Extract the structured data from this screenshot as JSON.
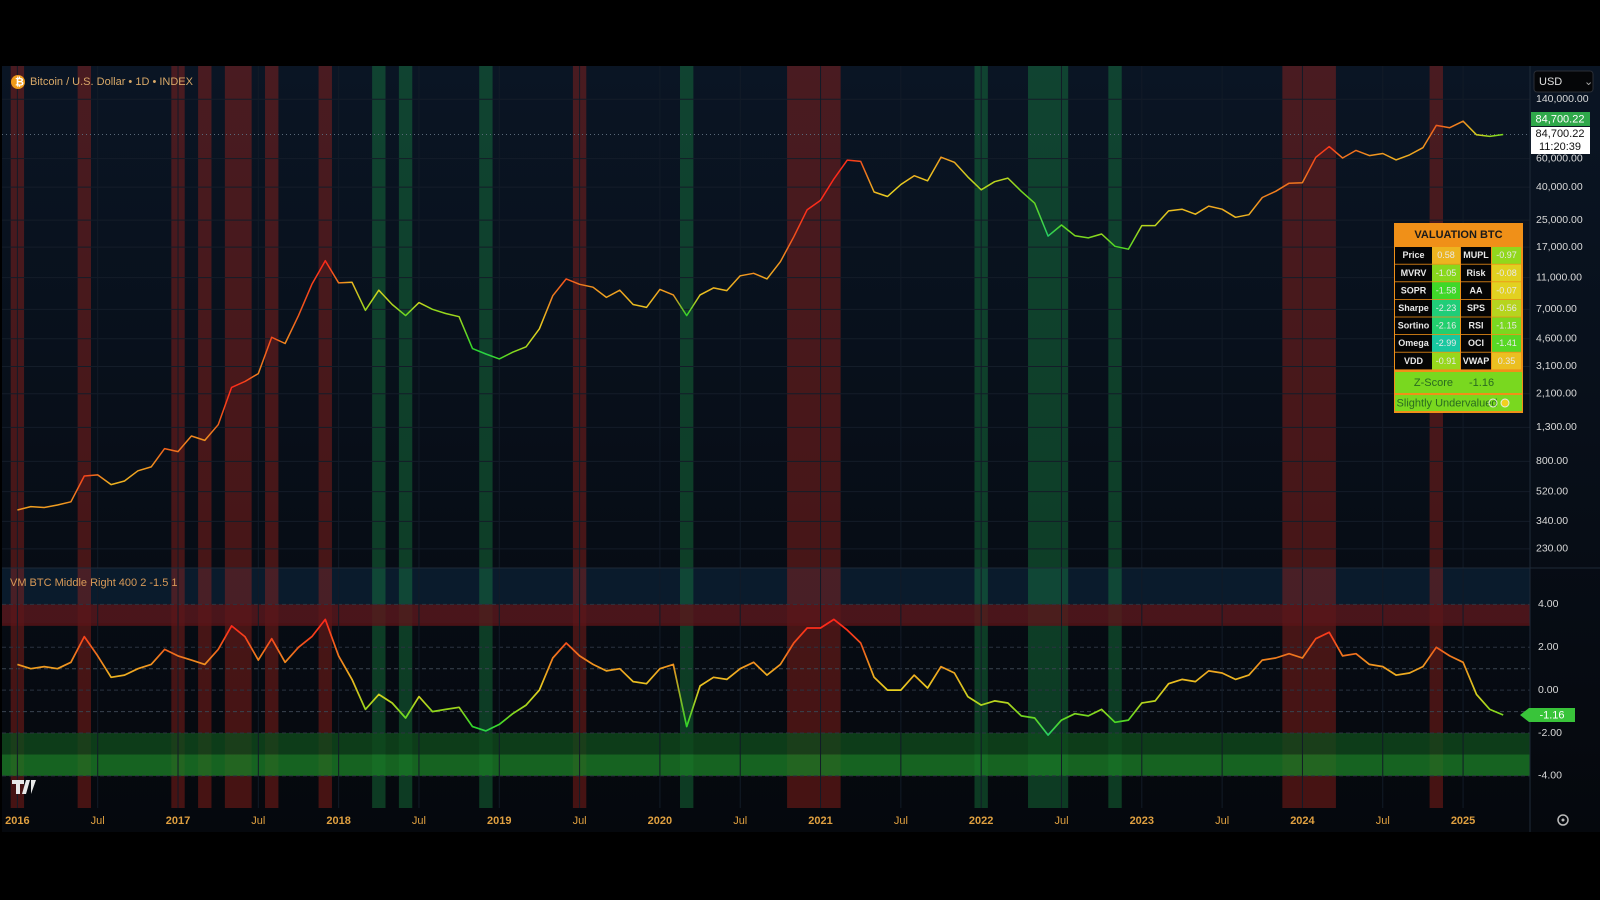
{
  "header": {
    "symbol": "Bitcoin / U.S. Dollar • 1D • INDEX",
    "currency": "USD"
  },
  "ui": {
    "last_price": {
      "value": 84700.22,
      "label": "84,700.22"
    },
    "last_price_2": {
      "value": 84700.22,
      "label": "84,700.22"
    },
    "countdown": "11:20:39",
    "valuation": {
      "title": "VALUATION BTC",
      "rows": [
        [
          "Price",
          0.58,
          "MUPL",
          -0.97
        ],
        [
          "MVRV",
          -1.05,
          "Risk",
          -0.08
        ],
        [
          "SOPR",
          -1.58,
          "AA",
          -0.07
        ],
        [
          "Sharpe",
          -2.23,
          "SPS",
          -0.56
        ],
        [
          "Sortino",
          -2.16,
          "RSI",
          -1.15
        ],
        [
          "Omega",
          -2.99,
          "OCI",
          -1.41
        ],
        [
          "VDD",
          -0.91,
          "VWAP",
          0.35
        ]
      ],
      "z_score_label": "Z-Score",
      "z_score": -1.16,
      "status": "Slightly Undervalued"
    }
  },
  "chart_data": [
    {
      "type": "line",
      "log_scale": true,
      "color": "#e8a020",
      "x": [
        "2016-01",
        "2016-02",
        "2016-03",
        "2016-04",
        "2016-05",
        "2016-06",
        "2016-07",
        "2016-08",
        "2016-09",
        "2016-10",
        "2016-11",
        "2016-12",
        "2017-01",
        "2017-02",
        "2017-03",
        "2017-04",
        "2017-05",
        "2017-06",
        "2017-07",
        "2017-08",
        "2017-09",
        "2017-10",
        "2017-11",
        "2017-12",
        "2018-01",
        "2018-02",
        "2018-03",
        "2018-04",
        "2018-05",
        "2018-06",
        "2018-07",
        "2018-08",
        "2018-09",
        "2018-10",
        "2018-11",
        "2018-12",
        "2019-01",
        "2019-02",
        "2019-03",
        "2019-04",
        "2019-05",
        "2019-06",
        "2019-07",
        "2019-08",
        "2019-09",
        "2019-10",
        "2019-11",
        "2019-12",
        "2020-01",
        "2020-02",
        "2020-03",
        "2020-04",
        "2020-05",
        "2020-06",
        "2020-07",
        "2020-08",
        "2020-09",
        "2020-10",
        "2020-11",
        "2020-12",
        "2021-01",
        "2021-02",
        "2021-03",
        "2021-04",
        "2021-05",
        "2021-06",
        "2021-07",
        "2021-08",
        "2021-09",
        "2021-10",
        "2021-11",
        "2021-12",
        "2022-01",
        "2022-02",
        "2022-03",
        "2022-04",
        "2022-05",
        "2022-06",
        "2022-07",
        "2022-08",
        "2022-09",
        "2022-10",
        "2022-11",
        "2022-12",
        "2023-01",
        "2023-02",
        "2023-03",
        "2023-04",
        "2023-05",
        "2023-06",
        "2023-07",
        "2023-08",
        "2023-09",
        "2023-10",
        "2023-11",
        "2023-12",
        "2024-01",
        "2024-02",
        "2024-03",
        "2024-04",
        "2024-05",
        "2024-06",
        "2024-07",
        "2024-08",
        "2024-09",
        "2024-10",
        "2024-11",
        "2024-12",
        "2025-01",
        "2025-02",
        "2025-03",
        "2025-04"
      ],
      "values": [
        400,
        420,
        415,
        430,
        450,
        650,
        660,
        575,
        605,
        700,
        740,
        960,
        920,
        1150,
        1080,
        1350,
        2300,
        2500,
        2800,
        4700,
        4300,
        6400,
        10000,
        14000,
        10200,
        10300,
        6900,
        9200,
        7500,
        6400,
        7700,
        7000,
        6600,
        6300,
        4000,
        3700,
        3450,
        3800,
        4100,
        5300,
        8500,
        10800,
        10000,
        9600,
        8300,
        9200,
        7500,
        7200,
        9300,
        8600,
        6400,
        8600,
        9500,
        9150,
        11300,
        11700,
        10800,
        13800,
        19700,
        29000,
        33100,
        45000,
        58800,
        57700,
        37300,
        35000,
        41500,
        47100,
        43800,
        61300,
        57000,
        46300,
        38500,
        43200,
        45500,
        37700,
        31800,
        19900,
        23300,
        20000,
        19400,
        20500,
        17200,
        16500,
        23100,
        23100,
        28500,
        29200,
        27200,
        30500,
        29200,
        26000,
        27000,
        34500,
        37700,
        42300,
        42600,
        61200,
        71300,
        60600,
        67500,
        62700,
        64600,
        59000,
        63300,
        70200,
        96400,
        93400,
        102400,
        84300,
        82500,
        84700
      ],
      "xlim": [
        "2015-12",
        "2025-06"
      ],
      "ylim": [
        175,
        225000
      ],
      "yticks": [
        {
          "value": 140000,
          "label": "140,000.00"
        },
        {
          "value": 60000,
          "label": "60,000.00"
        },
        {
          "value": 40000,
          "label": "40,000.00"
        },
        {
          "value": 25000,
          "label": "25,000.00"
        },
        {
          "value": 17000,
          "label": "17,000.00"
        },
        {
          "value": 11000,
          "label": "11,000.00"
        },
        {
          "value": 7000,
          "label": "7,000.00"
        },
        {
          "value": 4600,
          "label": "4,600.00"
        },
        {
          "value": 3100,
          "label": "3,100.00"
        },
        {
          "value": 2100,
          "label": "2,100.00"
        },
        {
          "value": 1300,
          "label": "1,300.00"
        },
        {
          "value": 800,
          "label": "800.00"
        },
        {
          "value": 520,
          "label": "520.00"
        },
        {
          "value": 340,
          "label": "340.00"
        },
        {
          "value": 230,
          "label": "230.00"
        }
      ],
      "grid": true,
      "highlights": [
        {
          "start": "2016-01",
          "end": "2016-01",
          "color": "#c0281e"
        },
        {
          "start": "2016-06",
          "end": "2016-06",
          "color": "#c0281e"
        },
        {
          "start": "2017-01",
          "end": "2017-01",
          "color": "#c0281e"
        },
        {
          "start": "2017-03",
          "end": "2017-03",
          "color": "#c0281e"
        },
        {
          "start": "2017-05",
          "end": "2017-06",
          "color": "#c0281e"
        },
        {
          "start": "2017-08",
          "end": "2017-08",
          "color": "#c0281e"
        },
        {
          "start": "2017-12",
          "end": "2017-12",
          "color": "#c0281e"
        },
        {
          "start": "2019-07",
          "end": "2019-07",
          "color": "#c0281e"
        },
        {
          "start": "2020-11",
          "end": "2021-02",
          "color": "#c0281e"
        },
        {
          "start": "2023-12",
          "end": "2024-03",
          "color": "#c0281e"
        },
        {
          "start": "2024-11",
          "end": "2024-11",
          "color": "#c0281e"
        },
        {
          "start": "2018-04",
          "end": "2018-04",
          "color": "#1e9a4a"
        },
        {
          "start": "2018-06",
          "end": "2018-06",
          "color": "#1e9a4a"
        },
        {
          "start": "2018-12",
          "end": "2018-12",
          "color": "#1e9a4a"
        },
        {
          "start": "2020-03",
          "end": "2020-03",
          "color": "#1e9a4a"
        },
        {
          "start": "2022-01",
          "end": "2022-01",
          "color": "#1e9a4a"
        },
        {
          "start": "2022-05",
          "end": "2022-07",
          "color": "#1e9a4a"
        },
        {
          "start": "2022-11",
          "end": "2022-11",
          "color": "#1e9a4a"
        }
      ]
    },
    {
      "type": "line",
      "title": "VM BTC Middle Right 400 2 -1.5 1",
      "color": "#e8a020",
      "x": [
        "2016-01",
        "2016-02",
        "2016-03",
        "2016-04",
        "2016-05",
        "2016-06",
        "2016-07",
        "2016-08",
        "2016-09",
        "2016-10",
        "2016-11",
        "2016-12",
        "2017-01",
        "2017-02",
        "2017-03",
        "2017-04",
        "2017-05",
        "2017-06",
        "2017-07",
        "2017-08",
        "2017-09",
        "2017-10",
        "2017-11",
        "2017-12",
        "2018-01",
        "2018-02",
        "2018-03",
        "2018-04",
        "2018-05",
        "2018-06",
        "2018-07",
        "2018-08",
        "2018-09",
        "2018-10",
        "2018-11",
        "2018-12",
        "2019-01",
        "2019-02",
        "2019-03",
        "2019-04",
        "2019-05",
        "2019-06",
        "2019-07",
        "2019-08",
        "2019-09",
        "2019-10",
        "2019-11",
        "2019-12",
        "2020-01",
        "2020-02",
        "2020-03",
        "2020-04",
        "2020-05",
        "2020-06",
        "2020-07",
        "2020-08",
        "2020-09",
        "2020-10",
        "2020-11",
        "2020-12",
        "2021-01",
        "2021-02",
        "2021-03",
        "2021-04",
        "2021-05",
        "2021-06",
        "2021-07",
        "2021-08",
        "2021-09",
        "2021-10",
        "2021-11",
        "2021-12",
        "2022-01",
        "2022-02",
        "2022-03",
        "2022-04",
        "2022-05",
        "2022-06",
        "2022-07",
        "2022-08",
        "2022-09",
        "2022-10",
        "2022-11",
        "2022-12",
        "2023-01",
        "2023-02",
        "2023-03",
        "2023-04",
        "2023-05",
        "2023-06",
        "2023-07",
        "2023-08",
        "2023-09",
        "2023-10",
        "2023-11",
        "2023-12",
        "2024-01",
        "2024-02",
        "2024-03",
        "2024-04",
        "2024-05",
        "2024-06",
        "2024-07",
        "2024-08",
        "2024-09",
        "2024-10",
        "2024-11",
        "2024-12",
        "2025-01",
        "2025-02",
        "2025-03",
        "2025-04"
      ],
      "values": [
        1.2,
        1.0,
        1.1,
        1.0,
        1.3,
        2.5,
        1.6,
        0.6,
        0.7,
        1.0,
        1.2,
        1.9,
        1.6,
        1.4,
        1.2,
        1.9,
        3.0,
        2.5,
        1.4,
        2.4,
        1.3,
        2.0,
        2.5,
        3.3,
        1.6,
        0.5,
        -0.9,
        -0.2,
        -0.6,
        -1.3,
        -0.3,
        -1.0,
        -0.9,
        -0.8,
        -1.7,
        -1.9,
        -1.6,
        -1.1,
        -0.7,
        0.0,
        1.5,
        2.2,
        1.6,
        1.2,
        0.9,
        1.0,
        0.4,
        0.3,
        1.0,
        1.2,
        -1.7,
        0.2,
        0.6,
        0.5,
        1.0,
        1.3,
        0.7,
        1.2,
        2.2,
        2.9,
        2.9,
        3.3,
        2.8,
        2.2,
        0.6,
        0.0,
        0.0,
        0.7,
        0.1,
        1.1,
        0.8,
        -0.3,
        -0.7,
        -0.5,
        -0.6,
        -1.2,
        -1.3,
        -2.1,
        -1.4,
        -1.1,
        -1.2,
        -0.9,
        -1.5,
        -1.4,
        -0.6,
        -0.5,
        0.3,
        0.5,
        0.4,
        0.9,
        0.8,
        0.5,
        0.7,
        1.4,
        1.5,
        1.7,
        1.5,
        2.4,
        2.7,
        1.6,
        1.7,
        1.2,
        1.1,
        0.7,
        0.8,
        1.1,
        2.0,
        1.6,
        1.3,
        -0.2,
        -0.9,
        -1.16
      ],
      "xlim": [
        "2015-12",
        "2025-06"
      ],
      "ylim": [
        -5.5,
        5.7
      ],
      "yticks": [
        {
          "value": 4,
          "label": "4.00"
        },
        {
          "value": 2,
          "label": "2.00"
        },
        {
          "value": 0,
          "label": "0.00"
        },
        {
          "value": -2,
          "label": "-2.00"
        },
        {
          "value": -4,
          "label": "-4.00"
        }
      ],
      "xticks": [
        {
          "value": "2016-01",
          "label": "2016"
        },
        {
          "value": "2016-07",
          "label": "Jul"
        },
        {
          "value": "2017-01",
          "label": "2017"
        },
        {
          "value": "2017-07",
          "label": "Jul"
        },
        {
          "value": "2018-01",
          "label": "2018"
        },
        {
          "value": "2018-07",
          "label": "Jul"
        },
        {
          "value": "2019-01",
          "label": "2019"
        },
        {
          "value": "2019-07",
          "label": "Jul"
        },
        {
          "value": "2020-01",
          "label": "2020"
        },
        {
          "value": "2020-07",
          "label": "Jul"
        },
        {
          "value": "2021-01",
          "label": "2021"
        },
        {
          "value": "2021-07",
          "label": "Jul"
        },
        {
          "value": "2022-01",
          "label": "2022"
        },
        {
          "value": "2022-07",
          "label": "Jul"
        },
        {
          "value": "2023-01",
          "label": "2023"
        },
        {
          "value": "2023-07",
          "label": "Jul"
        },
        {
          "value": "2024-01",
          "label": "2024"
        },
        {
          "value": "2024-07",
          "label": "Jul"
        },
        {
          "value": "2025-01",
          "label": "2025"
        }
      ],
      "bands": [
        {
          "from": 3,
          "to": 4,
          "color": "#5a1418"
        },
        {
          "from": -3,
          "to": -2,
          "color": "#0f4a1c"
        },
        {
          "from": -4,
          "to": -3,
          "color": "#1a7a26"
        }
      ],
      "hlines": [
        1,
        -1
      ]
    }
  ]
}
